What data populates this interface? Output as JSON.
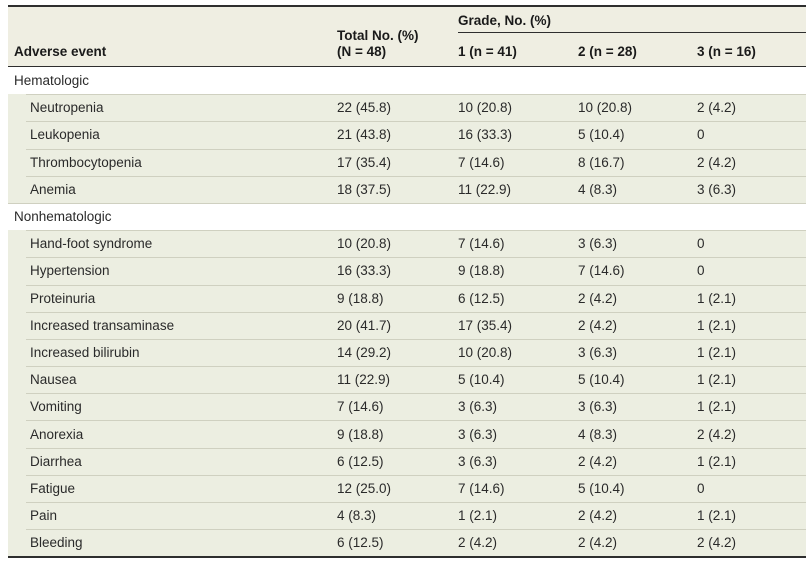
{
  "colors": {
    "header_bg": "#efeee2",
    "row_bg": "#eceee1",
    "section_bg": "#ffffff",
    "dark_border": "#2e2e2e",
    "separator": "#cfd0c0",
    "text": "#2a2a2a"
  },
  "table": {
    "header": {
      "adverse_event": "Adverse event",
      "total_line1": "Total No. (%)",
      "total_line2": "(N = 48)",
      "grade_group": "Grade, No. (%)",
      "grade_cols": [
        "1 (n = 41)",
        "2 (n = 28)",
        "3 (n = 16)"
      ]
    },
    "sections": [
      {
        "label": "Hematologic",
        "rows": [
          {
            "event": "Neutropenia",
            "values": [
              "22 (45.8)",
              "10 (20.8)",
              "10 (20.8)",
              "2 (4.2)"
            ]
          },
          {
            "event": "Leukopenia",
            "values": [
              "21 (43.8)",
              "16 (33.3)",
              "5 (10.4)",
              "0"
            ]
          },
          {
            "event": "Thrombocytopenia",
            "values": [
              "17 (35.4)",
              "7 (14.6)",
              "8 (16.7)",
              "2 (4.2)"
            ]
          },
          {
            "event": "Anemia",
            "values": [
              "18 (37.5)",
              "11 (22.9)",
              "4 (8.3)",
              "3 (6.3)"
            ]
          }
        ]
      },
      {
        "label": "Nonhematologic",
        "rows": [
          {
            "event": "Hand-foot syndrome",
            "values": [
              "10 (20.8)",
              "7 (14.6)",
              "3 (6.3)",
              "0"
            ]
          },
          {
            "event": "Hypertension",
            "values": [
              "16 (33.3)",
              "9 (18.8)",
              "7 (14.6)",
              "0"
            ]
          },
          {
            "event": "Proteinuria",
            "values": [
              "9 (18.8)",
              "6 (12.5)",
              "2 (4.2)",
              "1 (2.1)"
            ]
          },
          {
            "event": "Increased transaminase",
            "values": [
              "20 (41.7)",
              "17 (35.4)",
              "2 (4.2)",
              "1 (2.1)"
            ]
          },
          {
            "event": "Increased bilirubin",
            "values": [
              "14 (29.2)",
              "10 (20.8)",
              "3 (6.3)",
              "1 (2.1)"
            ]
          },
          {
            "event": "Nausea",
            "values": [
              "11 (22.9)",
              "5 (10.4)",
              "5 (10.4)",
              "1 (2.1)"
            ]
          },
          {
            "event": "Vomiting",
            "values": [
              "7 (14.6)",
              "3 (6.3)",
              "3 (6.3)",
              "1 (2.1)"
            ]
          },
          {
            "event": "Anorexia",
            "values": [
              "9 (18.8)",
              "3 (6.3)",
              "4 (8.3)",
              "2 (4.2)"
            ]
          },
          {
            "event": "Diarrhea",
            "values": [
              "6 (12.5)",
              "3 (6.3)",
              "2 (4.2)",
              "1 (2.1)"
            ]
          },
          {
            "event": "Fatigue",
            "values": [
              "12 (25.0)",
              "7 (14.6)",
              "5 (10.4)",
              "0"
            ]
          },
          {
            "event": "Pain",
            "values": [
              "4 (8.3)",
              "1 (2.1)",
              "2 (4.2)",
              "1 (2.1)"
            ]
          },
          {
            "event": "Bleeding",
            "values": [
              "6 (12.5)",
              "2 (4.2)",
              "2 (4.2)",
              "2 (4.2)"
            ]
          }
        ]
      }
    ]
  }
}
